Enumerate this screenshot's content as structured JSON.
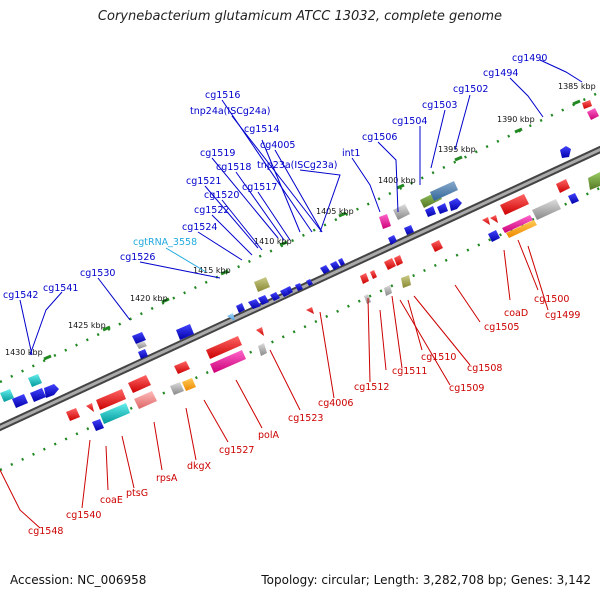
{
  "header": {
    "title": "Corynebacterium glutamicum ATCC 13032, complete genome"
  },
  "footer": {
    "accession": "Accession: NC_006958",
    "topology": "Topology: circular; Length: 3,282,708 bp; Genes: 3,142"
  },
  "colors": {
    "forward_label": "#0000cc",
    "reverse_label": "#cc0000",
    "rna_label": "#22aadd",
    "backbone": "#888888",
    "tick": "#228822"
  },
  "ruler_ticks": [
    "1385 kbp",
    "1390 kbp",
    "1395 kbp",
    "1400 kbp",
    "1405 kbp",
    "1410 kbp",
    "1415 kbp",
    "1420 kbp",
    "1425 kbp",
    "1430 kbp"
  ],
  "forward_labels": [
    "cg1490",
    "cg1494",
    "cg1502",
    "cg1503",
    "cg1504",
    "cg1506",
    "int1",
    "cg1516",
    "tnp24a(ISCg24a)",
    "cg1514",
    "cg4005",
    "tnp23a(ISCg23a)",
    "cg1519",
    "cg1518",
    "cg1521",
    "cg1517",
    "cg1520",
    "cg1522",
    "cg1524",
    "cg1526",
    "cg1530",
    "cg1541",
    "cg1542"
  ],
  "rna_labels": [
    "cgtRNA_3558"
  ],
  "reverse_labels": [
    "coaD",
    "cg1500",
    "cg1499",
    "cg1505",
    "cg1510",
    "cg1508",
    "cg1511",
    "cg1509",
    "cg1512",
    "cg4006",
    "cg1523",
    "polA",
    "cg1527",
    "dkgX",
    "rpsA",
    "ptsG",
    "coaE",
    "cg1540",
    "cg1548"
  ]
}
